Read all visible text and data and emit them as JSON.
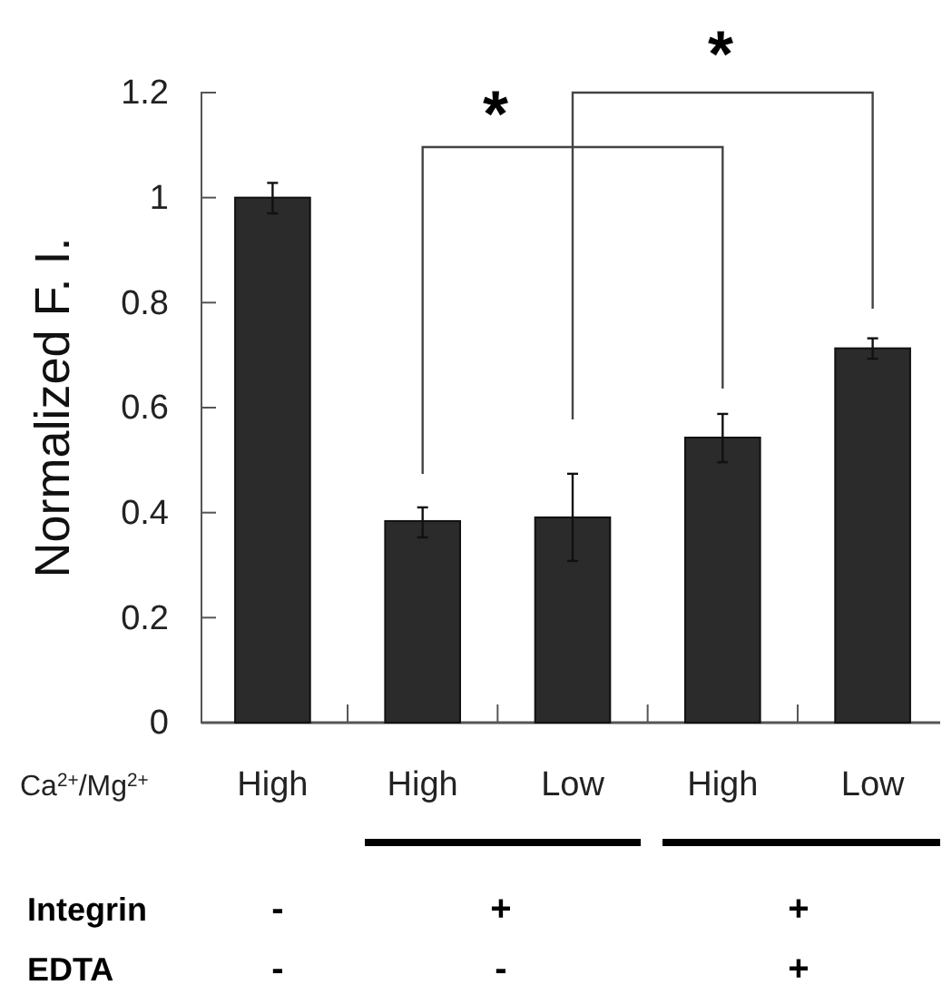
{
  "chart_data": {
    "type": "bar",
    "ylabel": "Normalized F. I.",
    "xlabel": "Ca$^{2+}$/Mg$^{2+}$",
    "categories": [
      "High",
      "High",
      "Low",
      "High",
      "Low"
    ],
    "values": [
      1.0,
      0.384,
      0.391,
      0.543,
      0.713
    ],
    "errors": [
      [
        0.97,
        1.028
      ],
      [
        0.353,
        0.41
      ],
      [
        0.308,
        0.474
      ],
      [
        0.496,
        0.588
      ],
      [
        0.693,
        0.732
      ]
    ],
    "color": "#2b2b2b",
    "ylim": [
      0,
      1.2
    ],
    "yticks": [
      0,
      0.2,
      0.4,
      0.6,
      0.8,
      1,
      1.2
    ],
    "annotations": [
      "*",
      "*",
      "Integrin",
      "-",
      "+",
      "+",
      "EDTA",
      "-",
      "-",
      "+"
    ]
  }
}
